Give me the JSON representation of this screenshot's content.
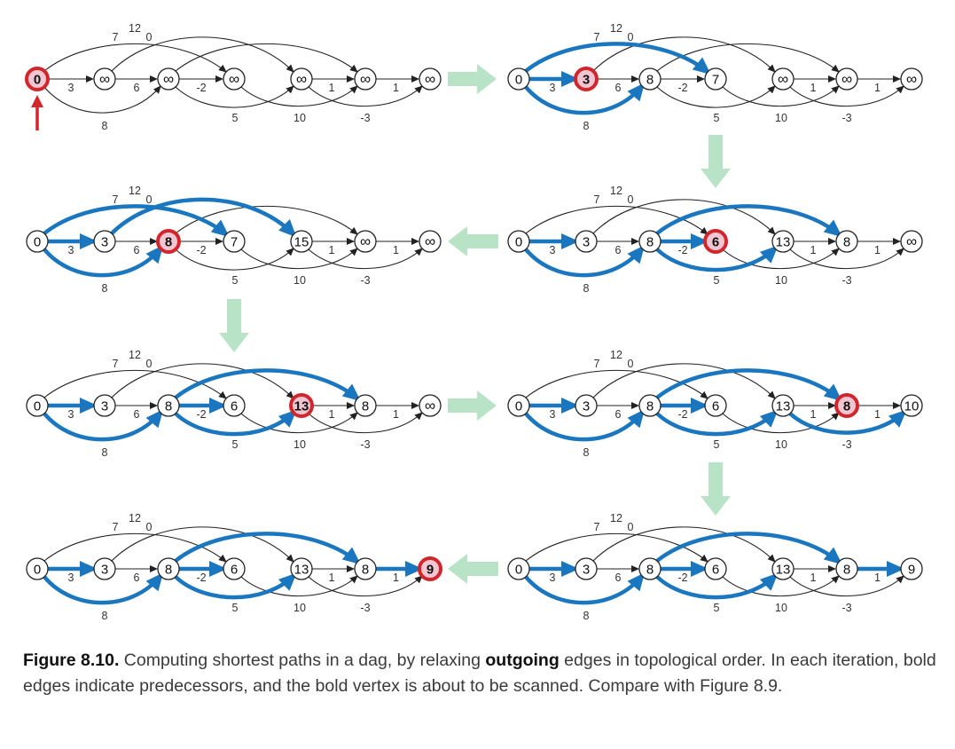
{
  "diagram": {
    "edges": [
      {
        "from": 0,
        "to": 1,
        "weight": "3"
      },
      {
        "from": 0,
        "to": 2,
        "weight": "8"
      },
      {
        "from": 0,
        "to": 3,
        "weight": "7"
      },
      {
        "from": 1,
        "to": 2,
        "weight": "6"
      },
      {
        "from": 1,
        "to": 4,
        "weight": "12"
      },
      {
        "from": 2,
        "to": 3,
        "weight": "-2"
      },
      {
        "from": 2,
        "to": 4,
        "weight": "5"
      },
      {
        "from": 2,
        "to": 5,
        "weight": "0"
      },
      {
        "from": 3,
        "to": 5,
        "weight": "10"
      },
      {
        "from": 4,
        "to": 5,
        "weight": "1"
      },
      {
        "from": 4,
        "to": 6,
        "weight": "-3"
      },
      {
        "from": 5,
        "to": 6,
        "weight": "1"
      }
    ],
    "panels": [
      {
        "labels": [
          "0",
          "∞",
          "∞",
          "∞",
          "∞",
          "∞",
          "∞"
        ],
        "bold_edges": [],
        "scan": 0,
        "start_arrow": true
      },
      {
        "labels": [
          "0",
          "3",
          "8",
          "7",
          "∞",
          "∞",
          "∞"
        ],
        "bold_edges": [
          [
            0,
            1
          ],
          [
            0,
            2
          ],
          [
            0,
            3
          ]
        ],
        "scan": 1
      },
      {
        "labels": [
          "0",
          "3",
          "8",
          "7",
          "15",
          "∞",
          "∞"
        ],
        "bold_edges": [
          [
            0,
            1
          ],
          [
            0,
            3
          ],
          [
            0,
            2
          ],
          [
            1,
            4
          ]
        ],
        "scan": 2
      },
      {
        "labels": [
          "0",
          "3",
          "8",
          "6",
          "13",
          "8",
          "∞"
        ],
        "bold_edges": [
          [
            0,
            1
          ],
          [
            0,
            2
          ],
          [
            2,
            3
          ],
          [
            2,
            4
          ],
          [
            2,
            5
          ]
        ],
        "scan": 3
      },
      {
        "labels": [
          "0",
          "3",
          "8",
          "6",
          "13",
          "8",
          "∞"
        ],
        "bold_edges": [
          [
            0,
            1
          ],
          [
            0,
            2
          ],
          [
            2,
            3
          ],
          [
            2,
            4
          ],
          [
            2,
            5
          ]
        ],
        "scan": 4
      },
      {
        "labels": [
          "0",
          "3",
          "8",
          "6",
          "13",
          "8",
          "10"
        ],
        "bold_edges": [
          [
            0,
            1
          ],
          [
            0,
            2
          ],
          [
            2,
            3
          ],
          [
            2,
            4
          ],
          [
            2,
            5
          ],
          [
            4,
            6
          ]
        ],
        "scan": 5
      },
      {
        "labels": [
          "0",
          "3",
          "8",
          "6",
          "13",
          "8",
          "9"
        ],
        "bold_edges": [
          [
            0,
            1
          ],
          [
            0,
            2
          ],
          [
            2,
            3
          ],
          [
            2,
            4
          ],
          [
            2,
            5
          ],
          [
            5,
            6
          ]
        ],
        "scan": 6
      },
      {
        "labels": [
          "0",
          "3",
          "8",
          "6",
          "13",
          "8",
          "9"
        ],
        "bold_edges": [
          [
            0,
            1
          ],
          [
            0,
            2
          ],
          [
            2,
            3
          ],
          [
            2,
            4
          ],
          [
            2,
            5
          ],
          [
            5,
            6
          ]
        ],
        "scan": -1
      }
    ]
  },
  "caption": {
    "figure": "Figure 8.10.",
    "text_before": " Computing shortest paths in a dag, by relaxing ",
    "bold_word": "outgoing",
    "text_after": " edges in topological order. In each iteration, bold edges indicate predecessors, and the bold vertex is about to be scanned. Compare with Figure 8.9."
  }
}
